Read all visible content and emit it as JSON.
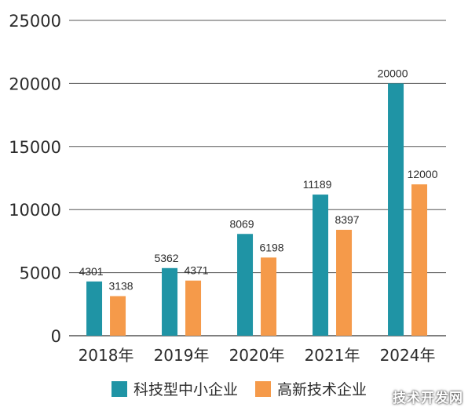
{
  "chart_data": {
    "type": "bar",
    "title": "",
    "xlabel": "",
    "ylabel": "",
    "categories": [
      "2018年",
      "2019年",
      "2020年",
      "2021年",
      "2024年"
    ],
    "series": [
      {
        "name": "科技型中小企业",
        "color": "#1f94a5",
        "values": [
          4301,
          5362,
          8069,
          11189,
          20000
        ]
      },
      {
        "name": "高新技术企业",
        "color": "#f59a4a",
        "values": [
          3138,
          4371,
          6198,
          8397,
          12000
        ]
      }
    ],
    "yticks": [
      "0",
      "5000",
      "10000",
      "15000",
      "20000",
      "25000"
    ],
    "ylim": [
      0,
      25000
    ],
    "grid": true,
    "legend_position": "bottom"
  },
  "legend": {
    "items": [
      {
        "label": "科技型中小企业",
        "color": "#1f94a5"
      },
      {
        "label": "高新技术企业",
        "color": "#f59a4a"
      }
    ]
  },
  "watermark": "技术开发网"
}
